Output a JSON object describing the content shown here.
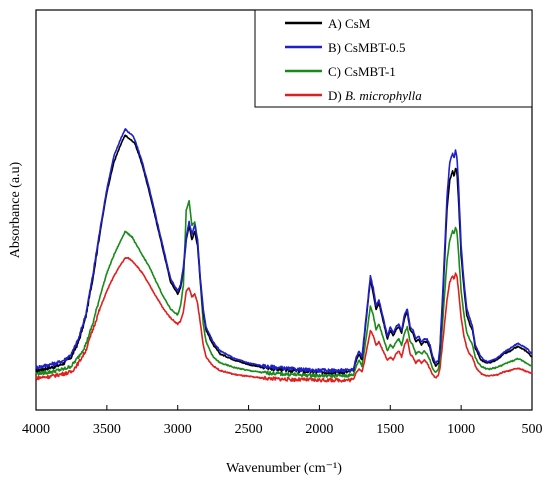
{
  "chart_data": {
    "type": "line",
    "xlabel": "Wavenumber (cm⁻¹)",
    "ylabel": "Absorbance (a.u)",
    "xlim": [
      4000,
      500
    ],
    "ylim": [
      0,
      1
    ],
    "x_ticks": [
      "4000",
      "3500",
      "3000",
      "2500",
      "2000",
      "1500",
      "1000",
      "500"
    ],
    "x_tick_values": [
      4000,
      3500,
      3000,
      2500,
      2000,
      1500,
      1000,
      500
    ],
    "grid": false,
    "legend_position": "top-right",
    "series": [
      {
        "name": "A) CsM",
        "name_prefix": "A) ",
        "name_main": "CsM",
        "italic": false,
        "color": "#000000",
        "x": [
          4000,
          3900,
          3850,
          3800,
          3750,
          3700,
          3650,
          3600,
          3550,
          3500,
          3450,
          3400,
          3370,
          3350,
          3320,
          3300,
          3250,
          3200,
          3150,
          3100,
          3050,
          3000,
          2980,
          2960,
          2940,
          2920,
          2900,
          2880,
          2860,
          2840,
          2820,
          2800,
          2750,
          2700,
          2600,
          2500,
          2400,
          2300,
          2200,
          2100,
          2000,
          1900,
          1800,
          1760,
          1740,
          1720,
          1700,
          1680,
          1660,
          1640,
          1620,
          1600,
          1580,
          1560,
          1540,
          1520,
          1500,
          1480,
          1460,
          1440,
          1420,
          1400,
          1380,
          1360,
          1340,
          1320,
          1300,
          1280,
          1260,
          1240,
          1220,
          1200,
          1180,
          1160,
          1150,
          1130,
          1100,
          1080,
          1060,
          1050,
          1040,
          1030,
          1020,
          1000,
          980,
          960,
          940,
          920,
          900,
          880,
          860,
          840,
          820,
          800,
          750,
          700,
          650,
          620,
          600,
          580,
          560,
          540,
          520,
          500
        ],
        "y": [
          0.065,
          0.075,
          0.08,
          0.09,
          0.11,
          0.16,
          0.24,
          0.37,
          0.52,
          0.66,
          0.76,
          0.82,
          0.85,
          0.84,
          0.83,
          0.82,
          0.75,
          0.66,
          0.56,
          0.46,
          0.36,
          0.32,
          0.34,
          0.4,
          0.5,
          0.55,
          0.5,
          0.53,
          0.48,
          0.36,
          0.26,
          0.2,
          0.15,
          0.12,
          0.1,
          0.085,
          0.075,
          0.07,
          0.065,
          0.062,
          0.06,
          0.06,
          0.06,
          0.065,
          0.1,
          0.12,
          0.1,
          0.19,
          0.28,
          0.37,
          0.32,
          0.27,
          0.29,
          0.25,
          0.21,
          0.17,
          0.2,
          0.18,
          0.2,
          0.21,
          0.19,
          0.24,
          0.26,
          0.2,
          0.19,
          0.16,
          0.17,
          0.15,
          0.16,
          0.16,
          0.14,
          0.1,
          0.08,
          0.09,
          0.13,
          0.3,
          0.6,
          0.7,
          0.73,
          0.71,
          0.74,
          0.73,
          0.65,
          0.45,
          0.34,
          0.25,
          0.22,
          0.2,
          0.14,
          0.12,
          0.1,
          0.095,
          0.09,
          0.09,
          0.1,
          0.12,
          0.13,
          0.14,
          0.145,
          0.14,
          0.135,
          0.13,
          0.12,
          0.11
        ]
      },
      {
        "name": "B) CsMBT-0.5",
        "name_prefix": "B) ",
        "name_main": "CsMBT-0.5",
        "italic": false,
        "color": "#1f1fcc",
        "x": [
          4000,
          3900,
          3850,
          3800,
          3750,
          3700,
          3650,
          3600,
          3550,
          3500,
          3450,
          3400,
          3370,
          3350,
          3320,
          3300,
          3250,
          3200,
          3150,
          3100,
          3050,
          3000,
          2980,
          2960,
          2940,
          2920,
          2900,
          2880,
          2860,
          2840,
          2820,
          2800,
          2750,
          2700,
          2600,
          2500,
          2400,
          2300,
          2200,
          2100,
          2000,
          1900,
          1800,
          1760,
          1740,
          1720,
          1700,
          1680,
          1660,
          1640,
          1620,
          1600,
          1580,
          1560,
          1540,
          1520,
          1500,
          1480,
          1460,
          1440,
          1420,
          1400,
          1380,
          1360,
          1340,
          1320,
          1300,
          1280,
          1260,
          1240,
          1220,
          1200,
          1180,
          1160,
          1150,
          1130,
          1100,
          1080,
          1060,
          1050,
          1040,
          1030,
          1020,
          1000,
          980,
          960,
          940,
          920,
          900,
          880,
          860,
          840,
          820,
          800,
          750,
          700,
          650,
          620,
          600,
          580,
          560,
          540,
          520,
          500
        ],
        "y": [
          0.075,
          0.085,
          0.09,
          0.1,
          0.12,
          0.17,
          0.25,
          0.38,
          0.53,
          0.67,
          0.78,
          0.84,
          0.87,
          0.86,
          0.85,
          0.83,
          0.76,
          0.67,
          0.57,
          0.47,
          0.37,
          0.33,
          0.35,
          0.41,
          0.51,
          0.56,
          0.52,
          0.55,
          0.5,
          0.37,
          0.27,
          0.21,
          0.16,
          0.13,
          0.105,
          0.09,
          0.08,
          0.075,
          0.07,
          0.067,
          0.065,
          0.065,
          0.065,
          0.07,
          0.11,
          0.13,
          0.11,
          0.2,
          0.29,
          0.38,
          0.34,
          0.28,
          0.3,
          0.26,
          0.22,
          0.18,
          0.21,
          0.19,
          0.21,
          0.22,
          0.2,
          0.25,
          0.27,
          0.21,
          0.2,
          0.17,
          0.18,
          0.16,
          0.17,
          0.17,
          0.15,
          0.11,
          0.09,
          0.1,
          0.14,
          0.32,
          0.64,
          0.76,
          0.79,
          0.77,
          0.8,
          0.78,
          0.7,
          0.48,
          0.36,
          0.27,
          0.24,
          0.21,
          0.15,
          0.13,
          0.11,
          0.1,
          0.095,
          0.095,
          0.105,
          0.125,
          0.14,
          0.15,
          0.155,
          0.15,
          0.145,
          0.14,
          0.13,
          0.12
        ]
      },
      {
        "name": "C) CsMBT-1",
        "name_prefix": "C) ",
        "name_main": "CsMBT-1",
        "italic": false,
        "color": "#1a8a1a",
        "x": [
          4000,
          3900,
          3850,
          3800,
          3750,
          3700,
          3650,
          3600,
          3550,
          3500,
          3450,
          3400,
          3370,
          3350,
          3320,
          3300,
          3250,
          3200,
          3150,
          3100,
          3050,
          3000,
          2980,
          2960,
          2940,
          2920,
          2900,
          2880,
          2860,
          2840,
          2820,
          2800,
          2750,
          2700,
          2600,
          2500,
          2400,
          2300,
          2200,
          2100,
          2000,
          1900,
          1800,
          1760,
          1740,
          1720,
          1700,
          1680,
          1660,
          1640,
          1620,
          1600,
          1580,
          1560,
          1540,
          1520,
          1500,
          1480,
          1460,
          1440,
          1420,
          1400,
          1380,
          1360,
          1340,
          1320,
          1300,
          1280,
          1260,
          1240,
          1220,
          1200,
          1180,
          1160,
          1150,
          1130,
          1100,
          1080,
          1060,
          1050,
          1040,
          1030,
          1020,
          1000,
          980,
          960,
          940,
          920,
          900,
          880,
          860,
          840,
          820,
          800,
          750,
          700,
          650,
          620,
          600,
          580,
          560,
          540,
          520,
          500
        ],
        "y": [
          0.055,
          0.06,
          0.065,
          0.07,
          0.08,
          0.11,
          0.15,
          0.22,
          0.31,
          0.39,
          0.45,
          0.5,
          0.53,
          0.52,
          0.51,
          0.49,
          0.45,
          0.41,
          0.36,
          0.31,
          0.27,
          0.25,
          0.28,
          0.35,
          0.6,
          0.63,
          0.55,
          0.56,
          0.5,
          0.36,
          0.22,
          0.16,
          0.11,
          0.09,
          0.075,
          0.065,
          0.058,
          0.055,
          0.052,
          0.05,
          0.048,
          0.048,
          0.048,
          0.05,
          0.08,
          0.1,
          0.08,
          0.14,
          0.21,
          0.28,
          0.25,
          0.2,
          0.22,
          0.19,
          0.16,
          0.13,
          0.15,
          0.14,
          0.16,
          0.17,
          0.15,
          0.19,
          0.21,
          0.16,
          0.15,
          0.12,
          0.13,
          0.12,
          0.13,
          0.12,
          0.1,
          0.07,
          0.06,
          0.07,
          0.1,
          0.23,
          0.43,
          0.5,
          0.53,
          0.52,
          0.54,
          0.53,
          0.47,
          0.33,
          0.25,
          0.19,
          0.17,
          0.15,
          0.11,
          0.09,
          0.08,
          0.075,
          0.07,
          0.07,
          0.075,
          0.085,
          0.095,
          0.1,
          0.105,
          0.1,
          0.095,
          0.09,
          0.085,
          0.08
        ]
      },
      {
        "name": "D) B. microphylla",
        "name_prefix": "D) ",
        "name_main": "B. microphylla",
        "italic": true,
        "color": "#e02020",
        "x": [
          4000,
          3900,
          3850,
          3800,
          3750,
          3700,
          3650,
          3600,
          3550,
          3500,
          3450,
          3400,
          3370,
          3350,
          3320,
          3300,
          3250,
          3200,
          3150,
          3100,
          3050,
          3000,
          2980,
          2960,
          2940,
          2920,
          2900,
          2880,
          2860,
          2840,
          2820,
          2800,
          2750,
          2700,
          2600,
          2500,
          2400,
          2300,
          2200,
          2100,
          2000,
          1900,
          1800,
          1760,
          1740,
          1720,
          1700,
          1680,
          1660,
          1640,
          1620,
          1600,
          1580,
          1560,
          1540,
          1520,
          1500,
          1480,
          1460,
          1440,
          1420,
          1400,
          1380,
          1360,
          1340,
          1320,
          1300,
          1280,
          1260,
          1240,
          1220,
          1200,
          1180,
          1160,
          1150,
          1130,
          1100,
          1080,
          1060,
          1050,
          1040,
          1030,
          1020,
          1000,
          980,
          960,
          940,
          920,
          900,
          880,
          860,
          840,
          820,
          800,
          750,
          700,
          650,
          620,
          600,
          580,
          560,
          540,
          520,
          500
        ],
        "y": [
          0.04,
          0.045,
          0.05,
          0.055,
          0.06,
          0.09,
          0.13,
          0.2,
          0.27,
          0.33,
          0.38,
          0.42,
          0.44,
          0.44,
          0.43,
          0.42,
          0.39,
          0.35,
          0.31,
          0.27,
          0.24,
          0.22,
          0.23,
          0.26,
          0.33,
          0.34,
          0.31,
          0.32,
          0.29,
          0.22,
          0.15,
          0.11,
          0.08,
          0.065,
          0.052,
          0.045,
          0.04,
          0.037,
          0.035,
          0.034,
          0.033,
          0.033,
          0.033,
          0.035,
          0.06,
          0.07,
          0.06,
          0.1,
          0.15,
          0.2,
          0.18,
          0.15,
          0.16,
          0.14,
          0.12,
          0.1,
          0.11,
          0.1,
          0.12,
          0.13,
          0.11,
          0.15,
          0.17,
          0.12,
          0.11,
          0.09,
          0.1,
          0.09,
          0.1,
          0.09,
          0.07,
          0.05,
          0.04,
          0.05,
          0.07,
          0.16,
          0.3,
          0.36,
          0.38,
          0.37,
          0.39,
          0.38,
          0.34,
          0.24,
          0.18,
          0.14,
          0.12,
          0.11,
          0.08,
          0.065,
          0.055,
          0.05,
          0.048,
          0.048,
          0.05,
          0.06,
          0.065,
          0.07,
          0.072,
          0.07,
          0.066,
          0.062,
          0.058,
          0.055
        ]
      }
    ]
  }
}
